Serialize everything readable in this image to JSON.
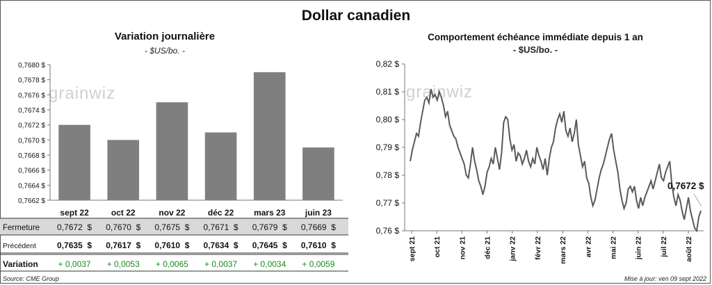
{
  "title": "Dollar canadien",
  "left": {
    "title": "Variation  journalière",
    "unit": "- $US/bo. -",
    "logo_text": "grainwiz"
  },
  "right": {
    "title": "Comportement échéance immédiate depuis 1 an",
    "unit": "- $US/bo. -",
    "logo_text": "grainwiz",
    "annotation": "0,7672 $"
  },
  "table": {
    "rows": [
      {
        "label": "Fermeture",
        "values": [
          "0,7672  $",
          "0,7670  $",
          "0,7675  $",
          "0,7671  $",
          "0,7679  $",
          "0,7669  $"
        ]
      },
      {
        "label": "Précédent",
        "values": [
          "0,7635  $",
          "0,7617  $",
          "0,7610  $",
          "0,7634  $",
          "0,7645  $",
          "0,7610  $"
        ]
      },
      {
        "label": "Variation",
        "values": [
          "+ 0,0037",
          "+ 0,0053",
          "+ 0,0065",
          "+ 0,0037",
          "+ 0,0034",
          "+ 0,0059"
        ]
      }
    ]
  },
  "footer": {
    "source": "Source: CME Group",
    "updated": "Mise à jour: ven 09 sept 2022"
  },
  "colors": {
    "bar": "#7f7f7f",
    "line": "#595959",
    "positive": "#1a8a1a",
    "highlight_row": "#d9d9d9"
  },
  "chart_data": [
    {
      "type": "bar",
      "categories": [
        "sept 22",
        "oct 22",
        "nov 22",
        "déc 22",
        "mars 23",
        "juin 23"
      ],
      "values": [
        0.7672,
        0.767,
        0.7675,
        0.7671,
        0.7679,
        0.7669
      ],
      "ylim": [
        0.7662,
        0.768
      ],
      "yticks": [
        "0,7662 $",
        "0,7664 $",
        "0,7666 $",
        "0,7668 $",
        "0,7670 $",
        "0,7672 $",
        "0,7674 $",
        "0,7676 $",
        "0,7678 $",
        "0,7680 $"
      ],
      "grid": false
    },
    {
      "type": "line",
      "ylim": [
        0.76,
        0.82
      ],
      "yticks": [
        "0,76 $",
        "0,77 $",
        "0,78 $",
        "0,79 $",
        "0,80 $",
        "0,81 $",
        "0,82 $"
      ],
      "xticks": [
        "sept 21",
        "oct 21",
        "nov 21",
        "déc 21",
        "janv 22",
        "févr 22",
        "mars 22",
        "avr 22",
        "mai 22",
        "juin 22",
        "juil 22",
        "août 22"
      ],
      "grid": false,
      "series": [
        {
          "values": [
            0.785,
            0.789,
            0.792,
            0.795,
            0.794,
            0.799,
            0.803,
            0.807,
            0.808,
            0.806,
            0.811,
            0.808,
            0.809,
            0.807,
            0.81,
            0.808,
            0.805,
            0.801,
            0.803,
            0.798,
            0.796,
            0.794,
            0.793,
            0.79,
            0.788,
            0.786,
            0.784,
            0.78,
            0.779,
            0.784,
            0.79,
            0.785,
            0.782,
            0.778,
            0.776,
            0.773,
            0.776,
            0.781,
            0.783,
            0.786,
            0.784,
            0.79,
            0.786,
            0.782,
            0.788,
            0.799,
            0.801,
            0.8,
            0.793,
            0.789,
            0.791,
            0.785,
            0.788,
            0.787,
            0.784,
            0.786,
            0.789,
            0.785,
            0.783,
            0.786,
            0.784,
            0.79,
            0.787,
            0.785,
            0.782,
            0.786,
            0.78,
            0.786,
            0.79,
            0.792,
            0.797,
            0.8,
            0.802,
            0.799,
            0.803,
            0.796,
            0.794,
            0.797,
            0.792,
            0.795,
            0.8,
            0.791,
            0.787,
            0.783,
            0.785,
            0.779,
            0.777,
            0.772,
            0.769,
            0.771,
            0.775,
            0.779,
            0.782,
            0.784,
            0.787,
            0.79,
            0.793,
            0.795,
            0.789,
            0.785,
            0.781,
            0.775,
            0.771,
            0.768,
            0.77,
            0.775,
            0.776,
            0.774,
            0.776,
            0.771,
            0.768,
            0.772,
            0.769,
            0.772,
            0.774,
            0.776,
            0.778,
            0.775,
            0.778,
            0.781,
            0.784,
            0.779,
            0.778,
            0.781,
            0.783,
            0.785,
            0.777,
            0.772,
            0.769,
            0.773,
            0.771,
            0.767,
            0.764,
            0.768,
            0.772,
            0.767,
            0.764,
            0.761,
            0.76,
            0.765,
            0.7672
          ]
        }
      ]
    }
  ]
}
